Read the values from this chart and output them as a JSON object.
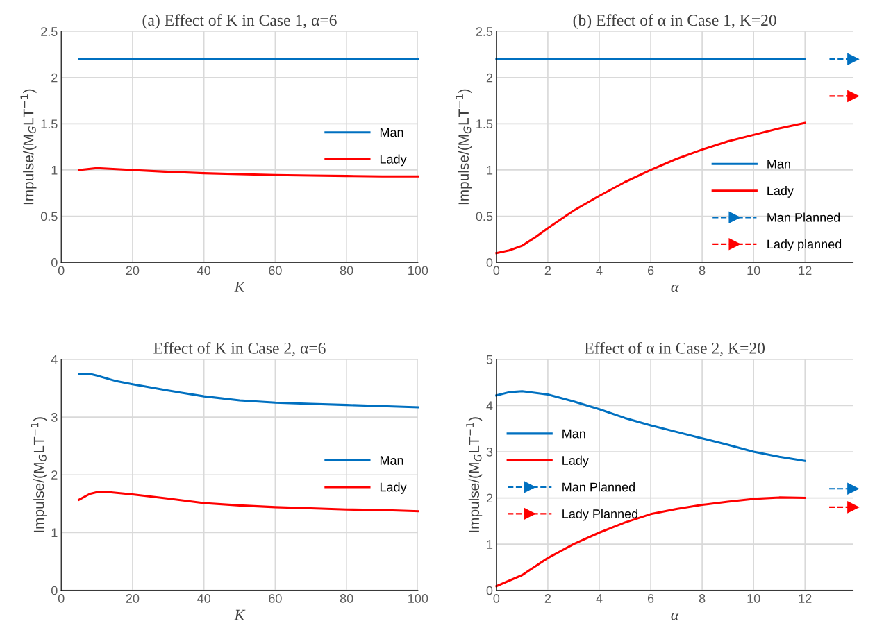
{
  "chart_data": [
    {
      "type": "line",
      "title": "(a) Effect of K in Case 1, α=6",
      "xlabel": "K",
      "ylabel": "Impulse/(M$_{G}$LT$^{−1}$)",
      "xlim": [
        0,
        100
      ],
      "xticks": [
        0,
        20,
        40,
        60,
        80,
        100
      ],
      "ylim": [
        0,
        2.5
      ],
      "yticks": [
        0,
        0.5,
        1,
        1.5,
        2,
        2.5
      ],
      "grid": true,
      "legend": "right",
      "series": [
        {
          "name": "Man",
          "color": "#0070c0",
          "x": [
            5,
            100
          ],
          "values": [
            2.2,
            2.2
          ]
        },
        {
          "name": "Lady",
          "color": "#ff0000",
          "x": [
            5,
            10,
            20,
            30,
            40,
            50,
            60,
            70,
            80,
            90,
            100
          ],
          "values": [
            1.0,
            1.02,
            1.0,
            0.98,
            0.965,
            0.955,
            0.945,
            0.94,
            0.935,
            0.93,
            0.93
          ]
        }
      ]
    },
    {
      "type": "line",
      "title": "(b) Effect of α in Case 1, K=20",
      "xlabel": "α",
      "ylabel": "Impulse/(M$_{G}$LT$^{−1}$)",
      "xlim": [
        0,
        13.87
      ],
      "xticks": [
        0,
        2,
        4,
        6,
        8,
        10,
        12
      ],
      "ylim": [
        0,
        2.5
      ],
      "yticks": [
        0,
        0.5,
        1,
        1.5,
        2,
        2.5
      ],
      "grid": true,
      "legend": "bottom right",
      "series": [
        {
          "name": "Man",
          "color": "#0070c0",
          "x": [
            0,
            12
          ],
          "values": [
            2.2,
            2.2
          ]
        },
        {
          "name": "Lady",
          "color": "#ff0000",
          "x": [
            0,
            0.5,
            1,
            1.5,
            2,
            3,
            4,
            5,
            6,
            7,
            8,
            9,
            10,
            11,
            12
          ],
          "values": [
            0.1,
            0.13,
            0.18,
            0.27,
            0.37,
            0.56,
            0.72,
            0.87,
            1.0,
            1.12,
            1.22,
            1.31,
            1.38,
            1.45,
            1.51
          ]
        },
        {
          "name": "Man Planned",
          "color": "#0070c0",
          "x": [
            12.95,
            13.87
          ],
          "values": [
            2.2,
            2.2
          ],
          "line_style": "dashed",
          "marker": "triangle"
        },
        {
          "name": "Lady planned",
          "color": "#ff0000",
          "x": [
            12.95,
            13.87
          ],
          "values": [
            1.8,
            1.8
          ],
          "line_style": "dashed",
          "marker": "triangle"
        }
      ]
    },
    {
      "type": "line",
      "title": "Effect of K in Case 2, α=6",
      "xlabel": "K",
      "ylabel": "Impulse/(M$_{G}$LT$^{−1}$)",
      "xlim": [
        0,
        100
      ],
      "xticks": [
        0,
        20,
        40,
        60,
        80,
        100
      ],
      "ylim": [
        0,
        4
      ],
      "yticks": [
        0,
        1,
        2,
        3,
        4
      ],
      "grid": true,
      "legend": "right",
      "series": [
        {
          "name": "Man",
          "color": "#0070c0",
          "x": [
            5,
            8,
            10,
            15,
            20,
            30,
            40,
            50,
            60,
            70,
            80,
            90,
            100
          ],
          "values": [
            3.75,
            3.75,
            3.72,
            3.63,
            3.57,
            3.46,
            3.36,
            3.29,
            3.25,
            3.23,
            3.21,
            3.19,
            3.17
          ]
        },
        {
          "name": "Lady",
          "color": "#ff0000",
          "x": [
            5,
            8,
            10,
            12,
            20,
            30,
            40,
            50,
            60,
            70,
            80,
            90,
            100
          ],
          "values": [
            1.57,
            1.67,
            1.7,
            1.71,
            1.66,
            1.59,
            1.51,
            1.47,
            1.44,
            1.42,
            1.4,
            1.39,
            1.37
          ]
        }
      ]
    },
    {
      "type": "line",
      "title": "Effect of α in Case 2, K=20",
      "xlabel": "α",
      "ylabel": "Impulse/(M$_{G}$LT$^{−1}$)",
      "xlim": [
        0,
        13.87
      ],
      "xticks": [
        0,
        2,
        4,
        6,
        8,
        10,
        12
      ],
      "ylim": [
        0,
        5
      ],
      "yticks": [
        0,
        1,
        2,
        3,
        4,
        5
      ],
      "grid": true,
      "legend": "center left",
      "series": [
        {
          "name": "Man",
          "color": "#0070c0",
          "x": [
            0,
            0.5,
            1,
            2,
            3,
            4,
            5,
            6,
            7,
            8,
            9,
            10,
            11,
            12
          ],
          "values": [
            4.22,
            4.29,
            4.31,
            4.24,
            4.09,
            3.92,
            3.73,
            3.57,
            3.43,
            3.29,
            3.15,
            3.0,
            2.89,
            2.8
          ]
        },
        {
          "name": "Lady",
          "color": "#ff0000",
          "x": [
            0,
            1,
            2,
            3,
            4,
            5,
            6,
            7,
            8,
            9,
            10,
            11,
            12
          ],
          "values": [
            0.09,
            0.33,
            0.7,
            1.0,
            1.25,
            1.47,
            1.65,
            1.76,
            1.85,
            1.92,
            1.98,
            2.01,
            2.0
          ]
        },
        {
          "name": "Man Planned",
          "color": "#0070c0",
          "x": [
            12.94,
            13.87
          ],
          "values": [
            2.2,
            2.2
          ],
          "line_style": "dashed",
          "marker": "triangle"
        },
        {
          "name": "Lady Planned",
          "color": "#ff0000",
          "x": [
            12.94,
            13.87
          ],
          "values": [
            1.8,
            1.8
          ],
          "line_style": "dashed",
          "marker": "triangle"
        }
      ]
    }
  ]
}
